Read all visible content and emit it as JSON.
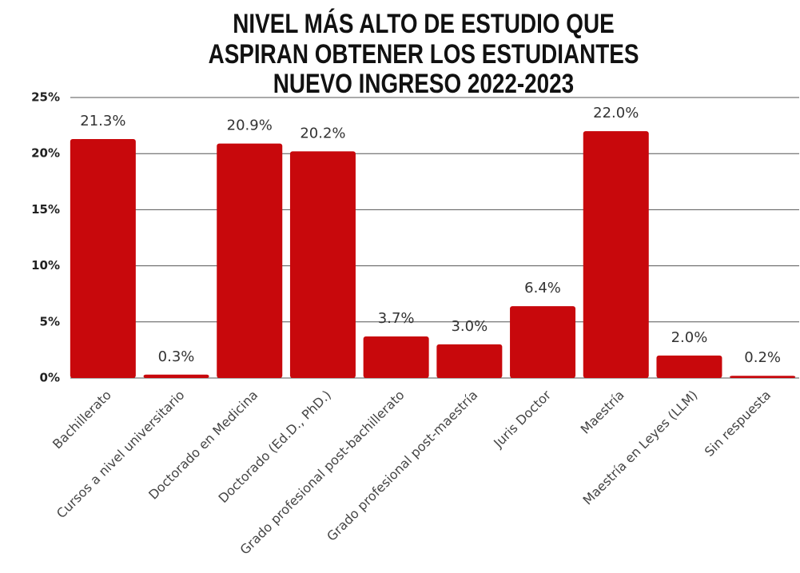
{
  "chart_data": {
    "type": "bar",
    "title": [
      "NIVEL MÁS ALTO DE ESTUDIO QUE",
      "ASPIRAN OBTENER LOS ESTUDIANTES",
      "NUEVO INGRESO 2022-2023"
    ],
    "categories": [
      "Bachillerato",
      "Cursos a nivel universitario",
      "Doctorado en Medicina",
      "Doctorado (Ed.D., PhD.)",
      "Grado profesional post-bachillerato",
      "Grado profesional post-maestría",
      "Juris Doctor",
      "Maestría",
      "Maestría en Leyes (LLM)",
      "Sin respuesta"
    ],
    "values": [
      21.3,
      0.3,
      20.9,
      20.2,
      3.7,
      3.0,
      6.4,
      22.0,
      2.0,
      0.2
    ],
    "value_labels": [
      "21.3%",
      "0.3%",
      "20.9%",
      "20.2%",
      "3.7%",
      "3.0%",
      "6.4%",
      "22.0%",
      "2.0%",
      "0.2%"
    ],
    "color": "#c8080c",
    "ylim": [
      0,
      25
    ],
    "yticks": [
      {
        "value": 0,
        "label": "0%"
      },
      {
        "value": 5,
        "label": "5%"
      },
      {
        "value": 10,
        "label": "10%"
      },
      {
        "value": 15,
        "label": "15%"
      },
      {
        "value": 20,
        "label": "20%"
      },
      {
        "value": 25,
        "label": "25%"
      }
    ],
    "grid": true
  }
}
